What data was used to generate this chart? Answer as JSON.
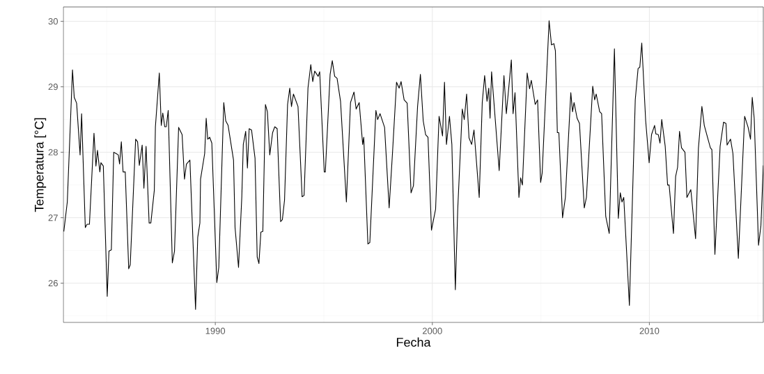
{
  "chart_data": {
    "type": "line",
    "xlabel": "Fecha",
    "ylabel": "Temperatura [°C]",
    "xlim": [
      1983,
      2015.25
    ],
    "ylim": [
      25.4,
      30.22
    ],
    "xticks": [
      1990,
      2000,
      2010
    ],
    "yticks": [
      26,
      27,
      28,
      29,
      30
    ],
    "grid": true,
    "series": [
      {
        "color": "#000000",
        "x": [
          1983.02,
          1983.18,
          1983.42,
          1983.5,
          1983.61,
          1983.77,
          1983.84,
          1984.01,
          1984.09,
          1984.2,
          1984.41,
          1984.5,
          1984.57,
          1984.68,
          1984.73,
          1984.84,
          1985.02,
          1985.1,
          1985.21,
          1985.32,
          1985.43,
          1985.53,
          1985.59,
          1985.67,
          1985.75,
          1985.85,
          1986.01,
          1986.08,
          1986.33,
          1986.42,
          1986.5,
          1986.63,
          1986.71,
          1986.81,
          1986.95,
          1987.03,
          1987.19,
          1987.24,
          1987.42,
          1987.51,
          1987.58,
          1987.67,
          1987.74,
          1987.83,
          1988.02,
          1988.12,
          1988.31,
          1988.47,
          1988.58,
          1988.67,
          1988.83,
          1989.09,
          1989.19,
          1989.29,
          1989.32,
          1989.51,
          1989.58,
          1989.65,
          1989.74,
          1989.84,
          1990.07,
          1990.16,
          1990.39,
          1990.48,
          1990.59,
          1990.84,
          1990.91,
          1991.07,
          1991.22,
          1991.29,
          1991.4,
          1991.48,
          1991.56,
          1991.67,
          1991.83,
          1991.93,
          1992.01,
          1992.1,
          1992.19,
          1992.31,
          1992.4,
          1992.51,
          1992.64,
          1992.74,
          1992.85,
          1993.01,
          1993.09,
          1993.19,
          1993.33,
          1993.43,
          1993.51,
          1993.6,
          1993.81,
          1994.0,
          1994.09,
          1994.27,
          1994.4,
          1994.49,
          1994.58,
          1994.74,
          1994.81,
          1995.02,
          1995.07,
          1995.29,
          1995.39,
          1995.5,
          1995.61,
          1995.77,
          1996.04,
          1996.23,
          1996.39,
          1996.49,
          1996.63,
          1996.79,
          1996.84,
          1997.03,
          1997.12,
          1997.4,
          1997.48,
          1997.59,
          1997.8,
          1998.01,
          1998.17,
          1998.35,
          1998.47,
          1998.56,
          1998.7,
          1998.84,
          1999.02,
          1999.13,
          1999.32,
          1999.45,
          1999.58,
          1999.69,
          1999.8,
          1999.96,
          2000.15,
          2000.31,
          2000.47,
          2000.56,
          2000.65,
          2000.79,
          2000.9,
          2001.06,
          2001.17,
          2001.38,
          2001.47,
          2001.58,
          2001.69,
          2001.81,
          2001.92,
          2002.16,
          2002.3,
          2002.41,
          2002.52,
          2002.6,
          2002.66,
          2002.73,
          2003.08,
          2003.3,
          2003.41,
          2003.64,
          2003.72,
          2003.81,
          2003.99,
          2004.07,
          2004.15,
          2004.37,
          2004.48,
          2004.56,
          2004.74,
          2004.85,
          2004.99,
          2005.06,
          2005.38,
          2005.49,
          2005.6,
          2005.67,
          2005.76,
          2005.83,
          2006.0,
          2006.13,
          2006.38,
          2006.46,
          2006.53,
          2006.67,
          2006.78,
          2007.0,
          2007.1,
          2007.39,
          2007.48,
          2007.55,
          2007.71,
          2007.8,
          2007.99,
          2008.15,
          2008.39,
          2008.57,
          2008.66,
          2008.74,
          2008.82,
          2009.08,
          2009.35,
          2009.48,
          2009.56,
          2009.65,
          2009.83,
          2009.99,
          2010.1,
          2010.24,
          2010.3,
          2010.41,
          2010.49,
          2010.57,
          2010.73,
          2010.84,
          2010.91,
          2011.11,
          2011.21,
          2011.3,
          2011.39,
          2011.48,
          2011.64,
          2011.73,
          2011.91,
          2012.13,
          2012.26,
          2012.42,
          2012.53,
          2012.81,
          2012.88,
          2013.02,
          2013.26,
          2013.42,
          2013.53,
          2013.58,
          2013.74,
          2013.85,
          2014.1,
          2014.39,
          2014.55,
          2014.66,
          2014.74,
          2014.83,
          2015.03,
          2015.14,
          2015.25
        ],
        "values": [
          26.79,
          27.24,
          29.26,
          28.84,
          28.75,
          27.96,
          28.59,
          26.85,
          26.9,
          26.9,
          28.29,
          27.79,
          28.03,
          27.7,
          27.84,
          27.79,
          25.8,
          26.49,
          26.51,
          28.0,
          27.98,
          27.96,
          27.82,
          28.16,
          27.7,
          27.7,
          26.22,
          26.28,
          28.2,
          28.16,
          27.8,
          28.11,
          27.45,
          28.09,
          26.92,
          26.92,
          27.42,
          28.39,
          29.21,
          28.41,
          28.6,
          28.39,
          28.39,
          28.64,
          26.31,
          26.49,
          28.38,
          28.27,
          27.59,
          27.82,
          27.88,
          25.6,
          26.7,
          26.92,
          27.59,
          27.98,
          28.52,
          28.2,
          28.23,
          28.14,
          26.01,
          26.24,
          28.76,
          28.48,
          28.41,
          27.88,
          26.85,
          26.24,
          27.31,
          28.12,
          28.32,
          27.76,
          28.36,
          28.34,
          27.91,
          26.4,
          26.3,
          26.78,
          26.79,
          28.73,
          28.62,
          27.96,
          28.3,
          28.39,
          28.36,
          26.94,
          26.97,
          27.27,
          28.73,
          28.98,
          28.7,
          28.89,
          28.7,
          27.32,
          27.34,
          28.98,
          29.34,
          29.08,
          29.24,
          29.16,
          29.23,
          27.7,
          27.7,
          29.19,
          29.4,
          29.16,
          29.13,
          28.78,
          27.24,
          28.76,
          28.92,
          28.66,
          28.76,
          28.12,
          28.23,
          26.6,
          26.62,
          28.64,
          28.5,
          28.59,
          28.38,
          27.15,
          28.02,
          29.07,
          28.98,
          29.08,
          28.8,
          28.75,
          27.38,
          27.49,
          28.7,
          29.19,
          28.48,
          28.27,
          28.23,
          26.81,
          27.13,
          28.55,
          28.25,
          29.07,
          28.12,
          28.55,
          28.12,
          25.9,
          27.13,
          28.66,
          28.5,
          28.89,
          28.22,
          28.12,
          28.34,
          27.31,
          28.76,
          29.17,
          28.78,
          28.98,
          28.52,
          29.23,
          27.72,
          29.17,
          28.59,
          29.41,
          28.59,
          28.91,
          27.31,
          27.61,
          27.5,
          29.21,
          28.97,
          29.1,
          28.73,
          28.8,
          27.54,
          27.68,
          30.01,
          29.64,
          29.66,
          29.55,
          28.3,
          28.3,
          27.0,
          27.31,
          28.91,
          28.62,
          28.76,
          28.52,
          28.44,
          27.15,
          27.31,
          29.01,
          28.8,
          28.89,
          28.62,
          28.59,
          27.02,
          26.76,
          29.58,
          26.99,
          27.38,
          27.24,
          27.31,
          25.66,
          28.8,
          29.28,
          29.3,
          29.67,
          28.48,
          27.84,
          28.27,
          28.41,
          28.28,
          28.27,
          28.14,
          28.5,
          28.09,
          27.5,
          27.5,
          26.76,
          27.63,
          27.77,
          28.32,
          28.07,
          28.0,
          27.31,
          27.43,
          26.68,
          28.06,
          28.7,
          28.41,
          28.07,
          28.04,
          26.44,
          28.09,
          28.46,
          28.44,
          28.11,
          28.2,
          27.98,
          26.38,
          28.55,
          28.38,
          28.2,
          28.84,
          28.52,
          26.58,
          26.88,
          27.8
        ]
      }
    ]
  }
}
